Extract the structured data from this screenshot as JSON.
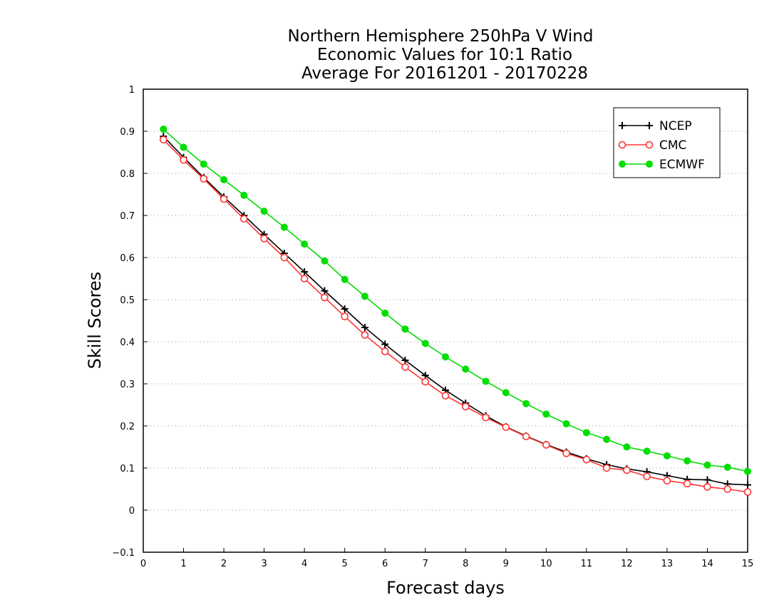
{
  "chart_data": {
    "type": "line",
    "title": [
      "Northern Hemisphere 250hPa V Wind",
      "Economic Values for 10:1 Ratio",
      "Average For 20161201 - 20170228"
    ],
    "xlabel": "Forecast days",
    "ylabel": "Skill Scores",
    "xlim": [
      0,
      15
    ],
    "ylim": [
      -0.1,
      1
    ],
    "xticks": [
      "0",
      "1",
      "2",
      "3",
      "4",
      "5",
      "6",
      "7",
      "8",
      "9",
      "10",
      "11",
      "12",
      "13",
      "14",
      "15"
    ],
    "yticks": [
      "−0.1",
      "0",
      "0.1",
      "0.2",
      "0.3",
      "0.4",
      "0.5",
      "0.6",
      "0.7",
      "0.8",
      "0.9",
      "1"
    ],
    "grid": true,
    "legend_position": "top-right",
    "x": [
      0.5,
      1,
      1.5,
      2,
      2.5,
      3,
      3.5,
      4,
      4.5,
      5,
      5.5,
      6,
      6.5,
      7,
      7.5,
      8,
      8.5,
      9,
      9.5,
      10,
      10.5,
      11,
      11.5,
      12,
      12.5,
      13,
      13.5,
      14,
      14.5,
      15
    ],
    "series": [
      {
        "name": "NCEP",
        "color": "#000000",
        "marker": "plus",
        "values": [
          0.888,
          0.838,
          0.79,
          0.744,
          0.7,
          0.655,
          0.61,
          0.566,
          0.521,
          0.478,
          0.434,
          0.394,
          0.356,
          0.32,
          0.285,
          0.254,
          0.224,
          0.198,
          0.176,
          0.156,
          0.138,
          0.122,
          0.108,
          0.098,
          0.091,
          0.082,
          0.073,
          0.072,
          0.062,
          0.06
        ]
      },
      {
        "name": "CMC",
        "color": "#ff3333",
        "marker": "open-circle",
        "values": [
          0.88,
          0.832,
          0.787,
          0.739,
          0.692,
          0.645,
          0.6,
          0.55,
          0.505,
          0.46,
          0.416,
          0.377,
          0.34,
          0.305,
          0.272,
          0.246,
          0.22,
          0.197,
          0.175,
          0.155,
          0.135,
          0.12,
          0.1,
          0.095,
          0.08,
          0.07,
          0.063,
          0.055,
          0.05,
          0.043
        ]
      },
      {
        "name": "ECMWF",
        "color": "#00dd00",
        "marker": "filled-circle",
        "values": [
          0.905,
          0.862,
          0.822,
          0.785,
          0.748,
          0.71,
          0.672,
          0.632,
          0.592,
          0.548,
          0.508,
          0.468,
          0.43,
          0.396,
          0.364,
          0.335,
          0.306,
          0.279,
          0.253,
          0.228,
          0.205,
          0.184,
          0.168,
          0.15,
          0.14,
          0.129,
          0.117,
          0.107,
          0.102,
          0.092
        ]
      }
    ]
  }
}
